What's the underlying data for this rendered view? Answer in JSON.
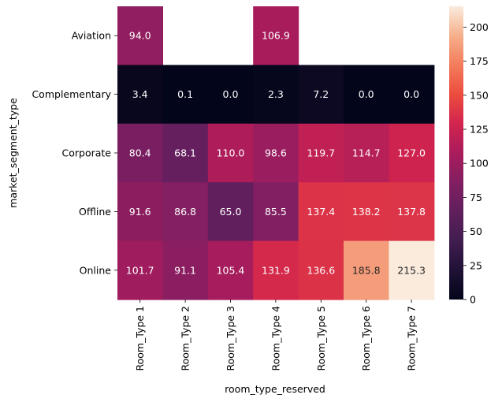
{
  "chart_data": {
    "type": "heatmap",
    "xlabel": "room_type_reserved",
    "ylabel": "market_segment_type",
    "x_categories": [
      "Room_Type 1",
      "Room_Type 2",
      "Room_Type 3",
      "Room_Type 4",
      "Room_Type 5",
      "Room_Type 6",
      "Room_Type 7"
    ],
    "y_categories": [
      "Aviation",
      "Complementary",
      "Corporate",
      "Offline",
      "Online"
    ],
    "values": [
      [
        94.0,
        null,
        null,
        106.9,
        null,
        null,
        null
      ],
      [
        3.4,
        0.1,
        0.0,
        2.3,
        7.2,
        0.0,
        0.0
      ],
      [
        80.4,
        68.1,
        110.0,
        98.6,
        119.7,
        114.7,
        127.0
      ],
      [
        91.6,
        86.8,
        65.0,
        85.5,
        137.4,
        138.2,
        137.8
      ],
      [
        101.7,
        91.1,
        105.4,
        131.9,
        136.6,
        185.8,
        215.3
      ]
    ],
    "value_format": "0.1f",
    "colormap": "rocket",
    "colorbar": {
      "range": [
        0,
        215.3
      ],
      "ticks": [
        0,
        25,
        50,
        75,
        100,
        125,
        150,
        175,
        200
      ]
    }
  }
}
